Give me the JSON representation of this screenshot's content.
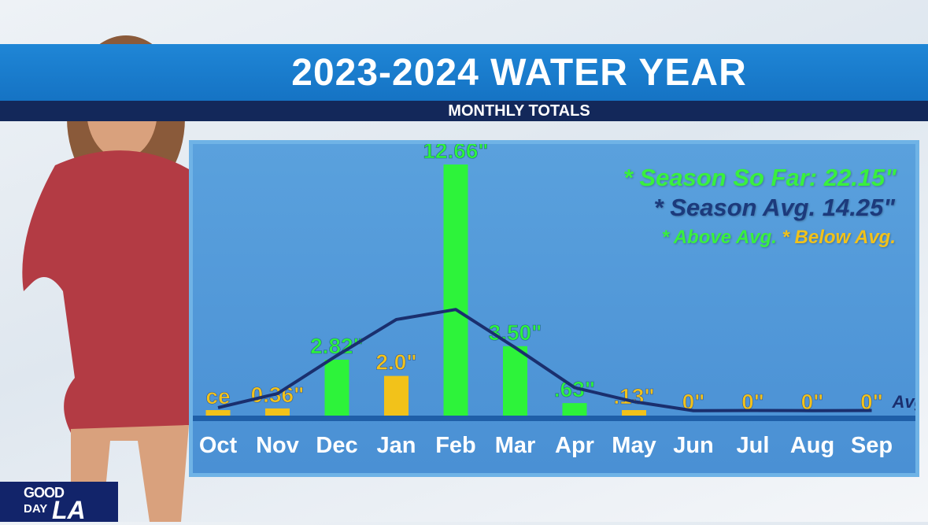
{
  "title": "2023-2024 WATER YEAR",
  "subtitle": "MONTHLY TOTALS",
  "legend": {
    "season_so_far": "* Season So Far:  22.15\"",
    "season_avg": "* Season Avg. 14.25\"",
    "above": "* Above Avg.",
    "below": "* Below Avg."
  },
  "logo": {
    "line1": "GOOD",
    "line2": "DAY",
    "line3": "LA"
  },
  "colors": {
    "above": "#2df33a",
    "below": "#f2c21a",
    "avg_line": "#1a2f6e",
    "title_bar": "#1573c4",
    "subtitle_bar": "#13285a"
  },
  "chart_data": {
    "type": "bar",
    "title": "2023-2024 WATER YEAR",
    "subtitle": "MONTHLY TOTALS",
    "categories": [
      "Oct",
      "Nov",
      "Dec",
      "Jan",
      "Feb",
      "Mar",
      "Apr",
      "May",
      "Jun",
      "Jul",
      "Aug",
      "Sep"
    ],
    "series": [
      {
        "values": [
          0.01,
          0.36,
          2.82,
          2.0,
          12.66,
          3.5,
          0.63,
          0.13,
          0,
          0,
          0,
          0
        ],
        "labels": [
          "ce",
          "0.36\"",
          "2.82\"",
          "2.0\"",
          "12.66\"",
          "3.50\"",
          ".63\"",
          ".13\"",
          "0\"",
          "0\"",
          "0\"",
          "0\""
        ],
        "status": [
          "below",
          "below",
          "above",
          "below",
          "above",
          "above",
          "above",
          "below",
          "below",
          "below",
          "below",
          "below"
        ]
      },
      {
        "name": "Avg.",
        "type": "line",
        "values": [
          0.2,
          0.9,
          2.8,
          4.6,
          5.1,
          3.2,
          1.2,
          0.5,
          0.05,
          0.06,
          0.05,
          0.06
        ]
      }
    ]
  }
}
